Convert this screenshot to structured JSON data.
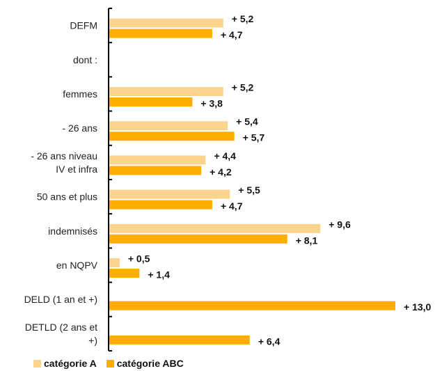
{
  "chart_data": {
    "type": "bar",
    "orientation": "horizontal",
    "categories": [
      [
        "DEFM"
      ],
      [
        "dont :"
      ],
      [
        "femmes"
      ],
      [
        "- 26 ans"
      ],
      [
        "- 26 ans niveau",
        "IV et infra"
      ],
      [
        "50 ans et plus"
      ],
      [
        "indemnisés"
      ],
      [
        "en NQPV"
      ],
      [
        "DELD (1 an et +)"
      ],
      [
        "DETLD (2 ans et",
        "+)"
      ]
    ],
    "series": [
      {
        "name": "catégorie A",
        "color": "#FAD48C",
        "values": [
          5.2,
          null,
          5.2,
          5.4,
          4.4,
          5.5,
          9.6,
          0.5,
          null,
          null
        ],
        "labels": [
          "+ 5,2",
          "",
          "+ 5,2",
          "+ 5,4",
          "+ 4,4",
          "+ 5,5",
          "+ 9,6",
          "+ 0,5",
          "",
          ""
        ]
      },
      {
        "name": "catégorie ABC",
        "color": "#FFAE00",
        "values": [
          4.7,
          null,
          3.8,
          5.7,
          4.2,
          4.7,
          8.1,
          1.4,
          13.0,
          6.4
        ],
        "labels": [
          "+ 4,7",
          "",
          "+ 3,8",
          "+ 5,7",
          "+ 4,2",
          "+ 4,7",
          "+ 8,1",
          "+ 1,4",
          "+ 13,0",
          "+ 6,4"
        ]
      }
    ],
    "xlim": [
      0,
      13.0
    ],
    "grid": false,
    "legend": "bottom-left"
  }
}
